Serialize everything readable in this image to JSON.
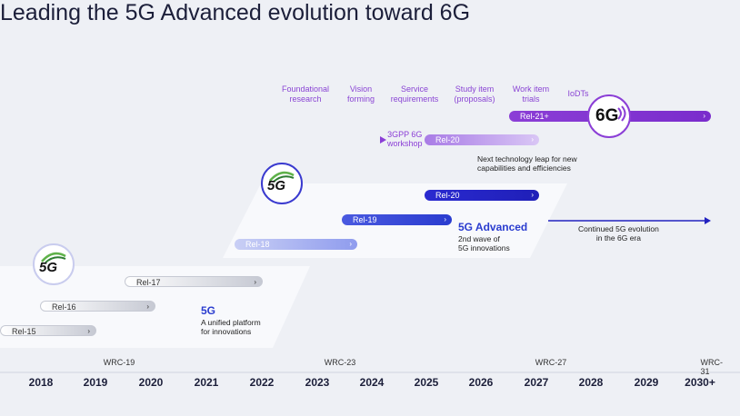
{
  "title": "Leading the 5G Advanced evolution toward 6G",
  "phases": [
    "Foundational research",
    "Vision forming",
    "Service requirements",
    "Study item (proposals)",
    "Work item trials",
    "IoDTs"
  ],
  "phase_lines": {
    "p0a": "Foundational",
    "p0b": "research",
    "p1a": "Vision",
    "p1b": "forming",
    "p2a": "Service",
    "p2b": "requirements",
    "p3a": "Study item",
    "p3b": "(proposals)",
    "p4a": "Work item",
    "p4b": "trials",
    "p5a": "IoDTs"
  },
  "releases": {
    "rel15": "Rel-15",
    "rel16": "Rel-16",
    "rel17": "Rel-17",
    "rel18": "Rel-18",
    "rel19": "Rel-19",
    "rel20a": "Rel-20",
    "rel20b": "Rel-20",
    "rel21": "Rel-21+"
  },
  "workshop": {
    "line1": "3GPP 6G",
    "line2": "workshop"
  },
  "next_leap": {
    "line1": "Next technology leap for new",
    "line2": "capabilities and efficiencies"
  },
  "fiveg": {
    "name": "5G",
    "line1": "A unified platform",
    "line2": "for innovations"
  },
  "fiveg_adv": {
    "name": "5G Advanced",
    "line1": "2nd wave of",
    "line2": "5G innovations"
  },
  "continued": {
    "line1": "Continued 5G evolution",
    "line2": "in the 6G era"
  },
  "logos": {
    "fiveg_a": "5G",
    "fiveg_b": "5G",
    "sixg": "6G"
  },
  "wrc": [
    "WRC-19",
    "WRC-23",
    "WRC-27",
    "WRC-31"
  ],
  "years": [
    "2018",
    "2019",
    "2020",
    "2021",
    "2022",
    "2023",
    "2024",
    "2025",
    "2026",
    "2027",
    "2028",
    "2029",
    "2030+"
  ],
  "colors": {
    "rel_gray": "#c6c9d3",
    "rel18": "#8f9cee",
    "rel19": "#2a3ccf",
    "rel20": "#2222c0",
    "rel20_6g": "#b590e8",
    "rel21": "#8b3ed6",
    "accent_text": "#2a3ccf"
  }
}
